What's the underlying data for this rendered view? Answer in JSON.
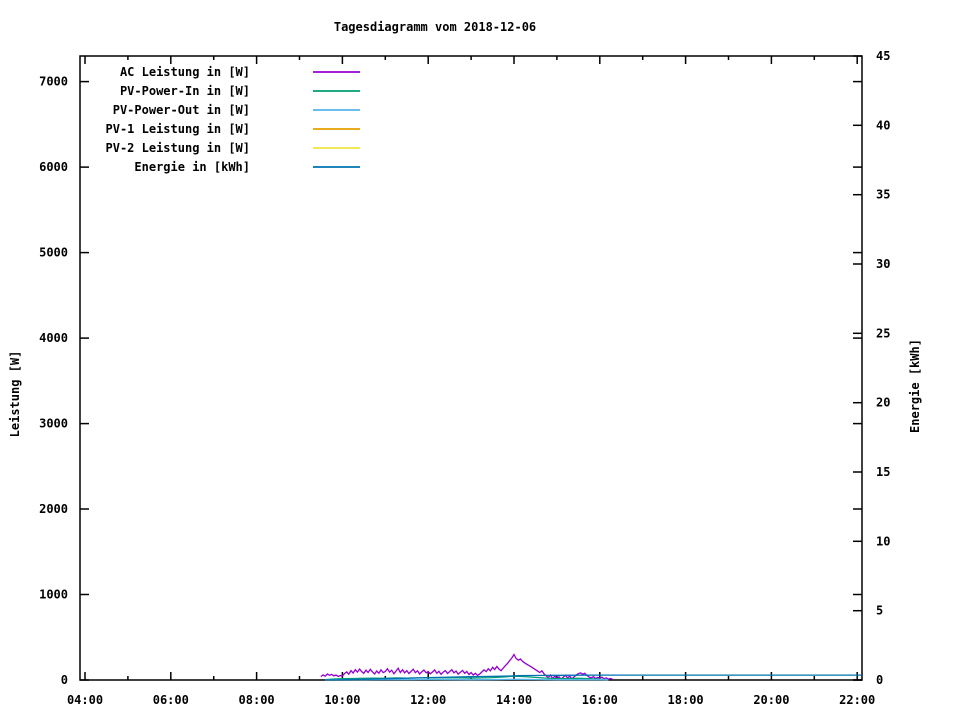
{
  "page": {
    "background": "#ffffff",
    "text_color": "#000000"
  },
  "chart_data": {
    "type": "line",
    "title": "Tagesdiagramm vom 2018-12-06",
    "ylabel_left": "Leistung [W]",
    "ylabel_right": "Energie [kWh]",
    "xlim_hours": [
      3.88,
      22.11
    ],
    "ylim_left": [
      0,
      7300
    ],
    "ylim_right": [
      0,
      45
    ],
    "grid": false,
    "legend_position": "top-left-inside",
    "x_major_ticks": [
      {
        "label": "04:00",
        "hour": 4
      },
      {
        "label": "06:00",
        "hour": 6
      },
      {
        "label": "08:00",
        "hour": 8
      },
      {
        "label": "10:00",
        "hour": 10
      },
      {
        "label": "12:00",
        "hour": 12
      },
      {
        "label": "14:00",
        "hour": 14
      },
      {
        "label": "16:00",
        "hour": 16
      },
      {
        "label": "18:00",
        "hour": 18
      },
      {
        "label": "20:00",
        "hour": 20
      },
      {
        "label": "22:00",
        "hour": 22
      }
    ],
    "x_minor_ticks_hours": [
      5,
      7,
      9,
      11,
      13,
      15,
      17,
      19,
      21
    ],
    "y_left_ticks": [
      0,
      1000,
      2000,
      3000,
      4000,
      5000,
      6000,
      7000
    ],
    "y_right_ticks": [
      0,
      5,
      10,
      15,
      20,
      25,
      30,
      35,
      40,
      45
    ],
    "series": [
      {
        "id": "ac",
        "name": "AC Leistung in [W]",
        "color": "#9400d3",
        "axis": "left",
        "points": [
          [
            9.5,
            40
          ],
          [
            9.55,
            60
          ],
          [
            9.6,
            45
          ],
          [
            9.65,
            70
          ],
          [
            9.7,
            55
          ],
          [
            9.75,
            65
          ],
          [
            9.8,
            48
          ],
          [
            9.85,
            58
          ],
          [
            9.9,
            42
          ],
          [
            9.95,
            52
          ],
          [
            10,
            48
          ],
          [
            10.05,
            75
          ],
          [
            10.1,
            95
          ],
          [
            10.15,
            68
          ],
          [
            10.2,
            110
          ],
          [
            10.25,
            82
          ],
          [
            10.3,
            120
          ],
          [
            10.35,
            92
          ],
          [
            10.4,
            128
          ],
          [
            10.45,
            98
          ],
          [
            10.5,
            78
          ],
          [
            10.55,
            115
          ],
          [
            10.6,
            88
          ],
          [
            10.65,
            125
          ],
          [
            10.7,
            96
          ],
          [
            10.75,
            70
          ],
          [
            10.8,
            105
          ],
          [
            10.85,
            80
          ],
          [
            10.9,
            118
          ],
          [
            10.95,
            86
          ],
          [
            11,
            100
          ],
          [
            11.05,
            132
          ],
          [
            11.1,
            92
          ],
          [
            11.15,
            115
          ],
          [
            11.2,
            74
          ],
          [
            11.25,
            104
          ],
          [
            11.3,
            138
          ],
          [
            11.35,
            88
          ],
          [
            11.4,
            120
          ],
          [
            11.45,
            84
          ],
          [
            11.5,
            110
          ],
          [
            11.55,
            76
          ],
          [
            11.6,
            100
          ],
          [
            11.65,
            126
          ],
          [
            11.7,
            86
          ],
          [
            11.75,
            108
          ],
          [
            11.8,
            70
          ],
          [
            11.85,
            95
          ],
          [
            11.9,
            116
          ],
          [
            11.95,
            84
          ],
          [
            12,
            100
          ],
          [
            12.05,
            72
          ],
          [
            12.1,
            94
          ],
          [
            12.15,
            118
          ],
          [
            12.2,
            80
          ],
          [
            12.25,
            102
          ],
          [
            12.3,
            66
          ],
          [
            12.35,
            92
          ],
          [
            12.4,
            110
          ],
          [
            12.45,
            76
          ],
          [
            12.5,
            98
          ],
          [
            12.55,
            120
          ],
          [
            12.6,
            84
          ],
          [
            12.65,
            104
          ],
          [
            12.7,
            68
          ],
          [
            12.75,
            90
          ],
          [
            12.8,
            112
          ],
          [
            12.85,
            78
          ],
          [
            12.9,
            100
          ],
          [
            12.95,
            64
          ],
          [
            13,
            86
          ],
          [
            13.05,
            58
          ],
          [
            13.1,
            78
          ],
          [
            13.15,
            54
          ],
          [
            13.2,
            70
          ],
          [
            13.25,
            94
          ],
          [
            13.3,
            118
          ],
          [
            13.35,
            98
          ],
          [
            13.4,
            132
          ],
          [
            13.45,
            108
          ],
          [
            13.5,
            148
          ],
          [
            13.55,
            122
          ],
          [
            13.6,
            158
          ],
          [
            13.65,
            128
          ],
          [
            13.7,
            110
          ],
          [
            13.75,
            140
          ],
          [
            13.8,
            168
          ],
          [
            13.85,
            195
          ],
          [
            13.9,
            228
          ],
          [
            13.95,
            258
          ],
          [
            14,
            298
          ],
          [
            14.05,
            252
          ],
          [
            14.1,
            232
          ],
          [
            14.15,
            246
          ],
          [
            14.2,
            218
          ],
          [
            14.25,
            200
          ],
          [
            14.3,
            184
          ],
          [
            14.35,
            168
          ],
          [
            14.4,
            154
          ],
          [
            14.45,
            138
          ],
          [
            14.5,
            120
          ],
          [
            14.55,
            104
          ],
          [
            14.6,
            88
          ],
          [
            14.65,
            108
          ],
          [
            14.7,
            72
          ],
          [
            14.75,
            48
          ],
          [
            14.8,
            28
          ],
          [
            14.85,
            58
          ],
          [
            14.9,
            18
          ],
          [
            14.95,
            44
          ],
          [
            15,
            14
          ],
          [
            15.05,
            38
          ],
          [
            15.1,
            10
          ],
          [
            15.15,
            34
          ],
          [
            15.2,
            54
          ],
          [
            15.25,
            24
          ],
          [
            15.3,
            44
          ],
          [
            15.35,
            14
          ],
          [
            15.4,
            36
          ],
          [
            15.45,
            58
          ],
          [
            15.5,
            74
          ],
          [
            15.55,
            84
          ],
          [
            15.6,
            68
          ],
          [
            15.65,
            78
          ],
          [
            15.7,
            54
          ],
          [
            15.75,
            34
          ],
          [
            15.8,
            24
          ],
          [
            15.85,
            40
          ],
          [
            15.9,
            18
          ],
          [
            15.95,
            30
          ],
          [
            16,
            22
          ],
          [
            16.05,
            34
          ],
          [
            16.1,
            14
          ],
          [
            16.15,
            26
          ],
          [
            16.2,
            10
          ],
          [
            16.25,
            16
          ],
          [
            16.3,
            8
          ]
        ]
      },
      {
        "id": "pv_in",
        "name": "PV-Power-In in [W]",
        "color": "#009e73",
        "axis": "left",
        "points": [
          [
            9.6,
            4
          ],
          [
            9.75,
            10
          ],
          [
            10,
            15
          ],
          [
            10.25,
            18
          ],
          [
            10.5,
            20
          ],
          [
            10.75,
            22
          ],
          [
            11,
            20
          ],
          [
            11.25,
            25
          ],
          [
            11.5,
            22
          ],
          [
            11.75,
            25
          ],
          [
            12,
            24
          ],
          [
            12.25,
            26
          ],
          [
            12.5,
            25
          ],
          [
            12.75,
            24
          ],
          [
            13,
            22
          ],
          [
            13.25,
            25
          ],
          [
            13.5,
            28
          ],
          [
            13.75,
            35
          ],
          [
            14,
            45
          ],
          [
            14.25,
            40
          ],
          [
            14.5,
            30
          ],
          [
            14.75,
            22
          ],
          [
            15,
            16
          ],
          [
            15.25,
            18
          ],
          [
            15.5,
            20
          ],
          [
            15.75,
            15
          ],
          [
            16,
            10
          ],
          [
            16.2,
            5
          ]
        ]
      },
      {
        "id": "pv_out",
        "name": "PV-Power-Out in [W]",
        "color": "#56b4e9",
        "axis": "left",
        "points": [
          [
            9.6,
            1
          ],
          [
            10,
            3
          ],
          [
            10.5,
            4
          ],
          [
            11,
            5
          ],
          [
            11.5,
            5
          ],
          [
            12,
            6
          ],
          [
            12.5,
            5
          ],
          [
            13,
            4
          ],
          [
            13.5,
            5
          ],
          [
            14,
            8
          ],
          [
            14.5,
            6
          ],
          [
            15,
            4
          ],
          [
            15.5,
            4
          ],
          [
            16,
            3
          ],
          [
            16.2,
            2
          ]
        ]
      },
      {
        "id": "pv1",
        "name": "PV-1 Leistung in [W]",
        "color": "#e69f00",
        "axis": "left",
        "points": []
      },
      {
        "id": "pv2",
        "name": "PV-2 Leistung in [W]",
        "color": "#f0e442",
        "axis": "left",
        "points": []
      },
      {
        "id": "energie",
        "name": "Energie in [kWh]",
        "color": "#0072b2",
        "axis": "right",
        "points": [
          [
            9.6,
            0
          ],
          [
            10,
            0.015
          ],
          [
            10.5,
            0.05
          ],
          [
            11,
            0.09
          ],
          [
            11.5,
            0.13
          ],
          [
            12,
            0.17
          ],
          [
            12.5,
            0.21
          ],
          [
            13,
            0.24
          ],
          [
            13.3,
            0.25
          ],
          [
            13.6,
            0.27
          ],
          [
            13.9,
            0.29
          ],
          [
            14.1,
            0.31
          ],
          [
            14.4,
            0.325
          ],
          [
            14.7,
            0.335
          ],
          [
            15,
            0.34
          ],
          [
            15.5,
            0.345
          ],
          [
            16,
            0.35
          ],
          [
            16.3,
            0.35
          ],
          [
            18,
            0.35
          ],
          [
            20,
            0.35
          ],
          [
            22.11,
            0.35
          ]
        ]
      }
    ]
  }
}
